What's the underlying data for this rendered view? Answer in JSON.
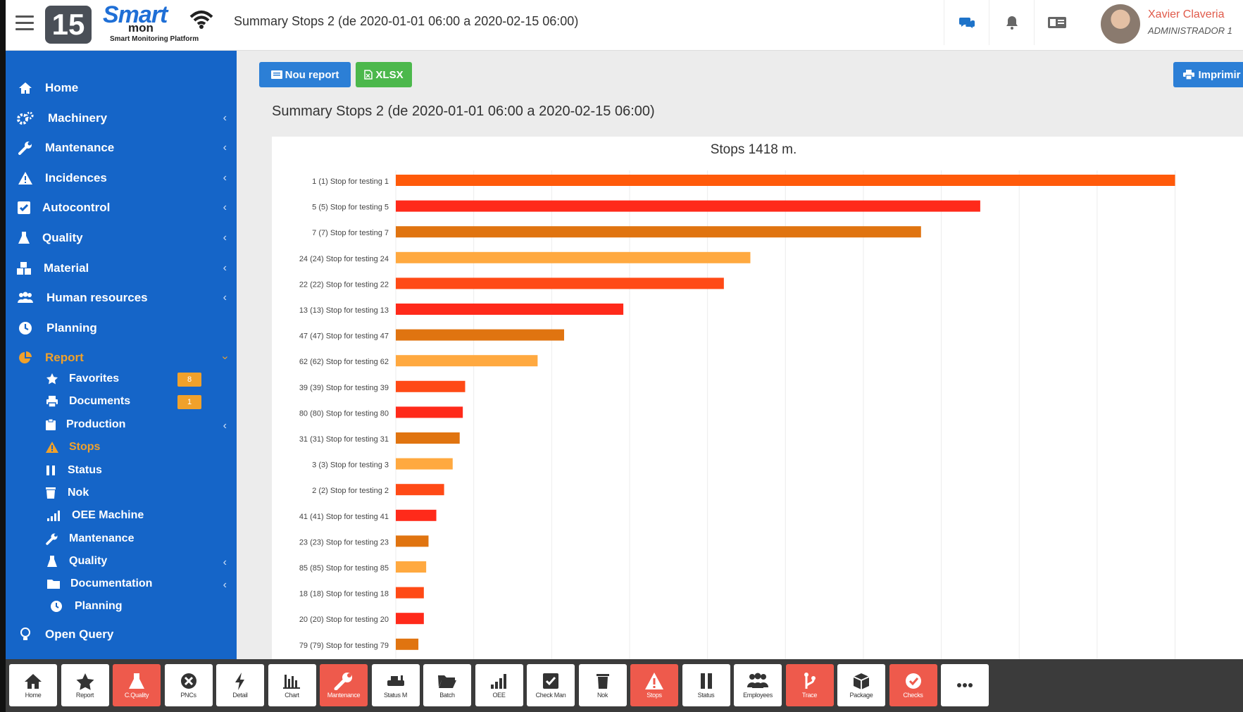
{
  "header": {
    "version": "15",
    "logo_main": "Smart",
    "logo_sub": "mon",
    "logo_tagline": "Smart Monitoring Platform",
    "title": "Summary Stops 2 (de 2020-01-01 06:00 a 2020-02-15 06:00)",
    "user_name": "Xavier Claveria",
    "user_role": "ADMINISTRADOR 1",
    "accent_color": "#1565c8",
    "user_color": "#e05a4a"
  },
  "sidebar": {
    "items": [
      {
        "label": "Home",
        "icon": "home-icon"
      },
      {
        "label": "Machinery",
        "icon": "cogs-icon"
      },
      {
        "label": "Mantenance",
        "icon": "wrench-icon"
      },
      {
        "label": "Incidences",
        "icon": "warning-icon"
      },
      {
        "label": "Autocontrol",
        "icon": "checkbox-icon"
      },
      {
        "label": "Quality",
        "icon": "flask-icon"
      },
      {
        "label": "Material",
        "icon": "cubes-icon"
      },
      {
        "label": "Human resources",
        "icon": "users-icon"
      },
      {
        "label": "Planning",
        "icon": "clock-icon"
      },
      {
        "label": "Report",
        "icon": "pie-chart-icon"
      }
    ],
    "report_sub": [
      {
        "label": "Favorites",
        "icon": "star-icon",
        "badge": "8"
      },
      {
        "label": "Documents",
        "icon": "print-icon",
        "badge": "1"
      },
      {
        "label": "Production",
        "icon": "clipboard-icon"
      },
      {
        "label": "Stops",
        "icon": "warning-icon"
      },
      {
        "label": "Status",
        "icon": "pause-icon"
      },
      {
        "label": "Nok",
        "icon": "trash-icon"
      },
      {
        "label": "OEE Machine",
        "icon": "signal-icon"
      },
      {
        "label": "Mantenance",
        "icon": "wrench-icon"
      },
      {
        "label": "Quality",
        "icon": "flask-icon"
      },
      {
        "label": "Documentation",
        "icon": "folder-icon"
      },
      {
        "label": "Planning",
        "icon": "clock-icon"
      }
    ],
    "open_query": "Open Query"
  },
  "toolbar": {
    "new_report": "Nou report",
    "xlsx": "XLSX",
    "print": "Imprimir"
  },
  "page": {
    "title": "Summary Stops 2 (de 2020-01-01 06:00 a 2020-02-15 06:00)"
  },
  "chart_data": {
    "type": "bar",
    "orientation": "horizontal",
    "title": "Stops 1418 m.",
    "categories": [
      "1 (1) Stop for testing 1",
      "5 (5) Stop for testing 5",
      "7 (7) Stop for testing 7",
      "24 (24) Stop for testing 24",
      "22 (22) Stop for testing 22",
      "13 (13) Stop for testing 13",
      "47 (47) Stop for testing 47",
      "62 (62) Stop for testing 62",
      "39 (39) Stop for testing 39",
      "80 (80) Stop for testing 80",
      "31 (31) Stop for testing 31",
      "3 (3) Stop for testing 3",
      "2 (2) Stop for testing 2",
      "41 (41) Stop for testing 41",
      "23 (23) Stop for testing 23",
      "85 (85) Stop for testing 85",
      "18 (18) Stop for testing 18",
      "20 (20) Stop for testing 20",
      "79 (79) Stop for testing 79"
    ],
    "values": [
      1000,
      750,
      674,
      455,
      421,
      292,
      216,
      182,
      89,
      86,
      82,
      73,
      62,
      52,
      42,
      39,
      36,
      36,
      29
    ],
    "colors": [
      "#ff5a0a",
      "#ff2a1a",
      "#e07410",
      "#ffa940",
      "#ff4a16",
      "#ff2a1a",
      "#e07410",
      "#ffa940",
      "#ff4a16",
      "#ff2a1a",
      "#e07410",
      "#ffa940",
      "#ff4a16",
      "#ff2a1a",
      "#e07410",
      "#ffa940",
      "#ff4a16",
      "#ff2a1a",
      "#e07410"
    ],
    "xlim": [
      0,
      1070
    ],
    "grid": true,
    "legend": "none"
  },
  "bottombar": [
    {
      "label": "Home",
      "icon": "home-icon",
      "active": false
    },
    {
      "label": "Report",
      "icon": "star-icon",
      "active": false
    },
    {
      "label": "C.Quality",
      "icon": "flask-icon",
      "active": true
    },
    {
      "label": "PNCs",
      "icon": "x-circle-icon",
      "active": false
    },
    {
      "label": "Detail",
      "icon": "bolt-icon",
      "active": false
    },
    {
      "label": "Chart",
      "icon": "bar-chart-icon",
      "active": false
    },
    {
      "label": "Mantenance",
      "icon": "wrench-icon",
      "active": true
    },
    {
      "label": "Status M",
      "icon": "machine-icon",
      "active": false
    },
    {
      "label": "Batch",
      "icon": "folder-open-icon",
      "active": false
    },
    {
      "label": "OEE",
      "icon": "signal-icon",
      "active": false
    },
    {
      "label": "Check Man",
      "icon": "check-square-icon",
      "active": false
    },
    {
      "label": "Nok",
      "icon": "trash-icon",
      "active": false
    },
    {
      "label": "Stops",
      "icon": "warning-icon",
      "active": true
    },
    {
      "label": "Status",
      "icon": "pause-icon",
      "active": false
    },
    {
      "label": "Employees",
      "icon": "users-icon",
      "active": false
    },
    {
      "label": "Trace",
      "icon": "branch-icon",
      "active": true
    },
    {
      "label": "Package",
      "icon": "cube-icon",
      "active": false
    },
    {
      "label": "Checks",
      "icon": "check-circle-icon",
      "active": true
    },
    {
      "label": "",
      "icon": "more-icon",
      "active": false
    }
  ]
}
